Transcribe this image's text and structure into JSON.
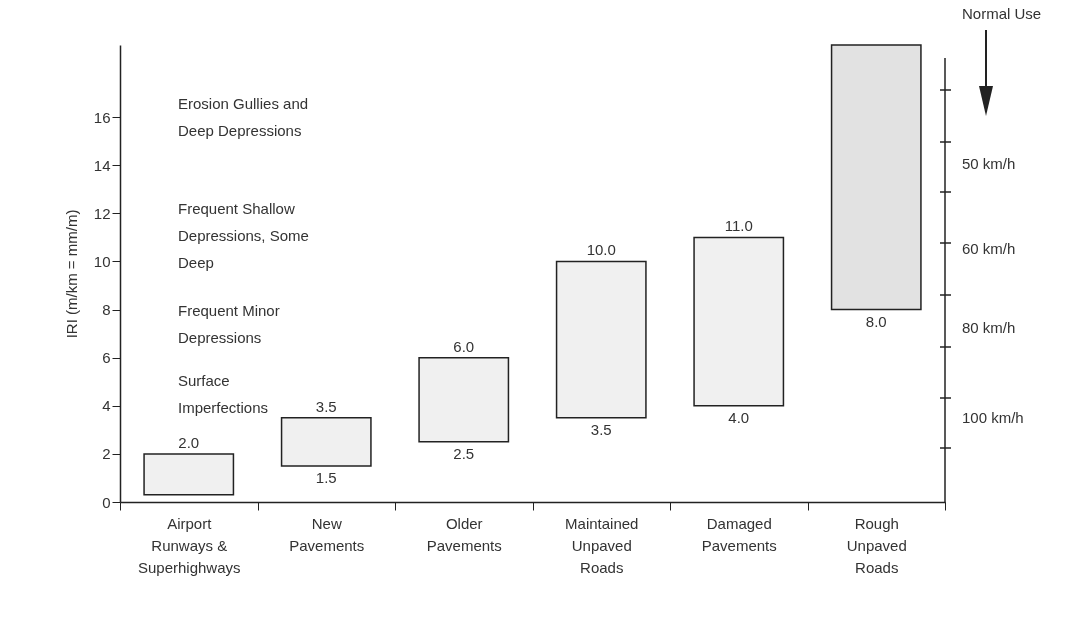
{
  "chart_data": {
    "type": "bar",
    "categories": [
      "Airport Runways & Superhighways",
      "New Pavements",
      "Older Pavements",
      "Maintained Unpaved Roads",
      "Damaged Pavements",
      "Rough Unpaved Roads"
    ],
    "base": [
      0.3,
      1.5,
      2.5,
      3.5,
      4.0,
      8.0
    ],
    "values": [
      1.7,
      2.0,
      3.5,
      6.5,
      7.0,
      11.0
    ],
    "value_labels": [
      "2.0",
      "3.5",
      "6.0",
      "10.0",
      "11.0",
      null
    ],
    "colors": [
      "#f0f0f0",
      "#f0f0f0",
      "#f0f0f0",
      "#f0f0f0",
      "#f0f0f0",
      "#e2e2e2"
    ],
    "ylabel": "IRI (m/km = mm/m)",
    "ylim": [
      0,
      19
    ],
    "yticks": [
      0,
      2,
      4,
      6,
      8,
      10,
      12,
      14,
      16
    ],
    "annotations": [
      "Erosion Gullies and Deep Depressions",
      "Frequent Shallow Depressions, Some Deep",
      "Frequent Minor Depressions",
      "Surface Imperfections",
      "Normal Use",
      "50 km/h",
      "60 km/h",
      "80 km/h",
      "100 km/h",
      {
        "text": "1.5",
        "x": "New Pavements",
        "y": 1.5
      },
      {
        "text": "2.5",
        "x": "Older Pavements",
        "y": 2.5
      },
      {
        "text": "3.5",
        "x": "Maintained Unpaved Roads",
        "y": 3.5
      },
      {
        "text": "4.0",
        "x": "Damaged Pavements",
        "y": 4.0
      },
      {
        "text": "8.0",
        "x": "Rough Unpaved Roads",
        "y": 8.0
      }
    ]
  }
}
